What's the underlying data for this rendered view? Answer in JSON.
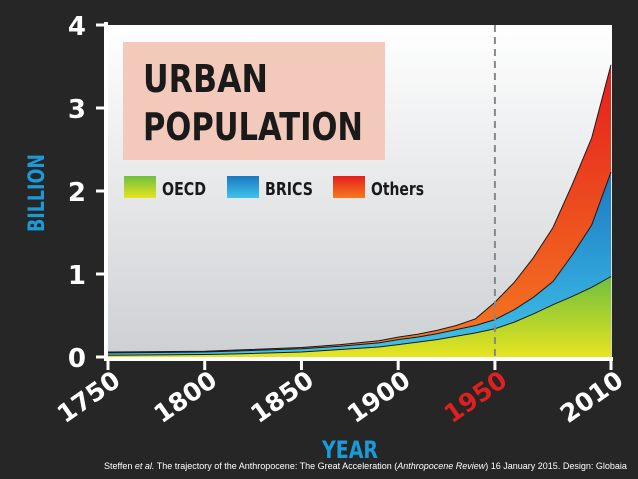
{
  "chart_data": {
    "type": "area",
    "stacked": true,
    "title": "URBAN POPULATION",
    "title_lines": [
      "URBAN",
      "POPULATION"
    ],
    "xlabel": "YEAR",
    "ylabel": "BILLION",
    "xlim": [
      1750,
      2010
    ],
    "ylim": [
      0,
      4
    ],
    "x_ticks": [
      1750,
      1800,
      1850,
      1900,
      1950,
      2010
    ],
    "y_ticks": [
      0,
      1,
      2,
      3,
      4
    ],
    "highlight_year": 1950,
    "legend_position": "top-left",
    "grid": false,
    "x": [
      1750,
      1800,
      1820,
      1850,
      1870,
      1890,
      1900,
      1910,
      1920,
      1930,
      1940,
      1950,
      1960,
      1970,
      1980,
      1990,
      2000,
      2010
    ],
    "series": [
      {
        "name": "OECD",
        "color_top": "#7dc242",
        "color_bottom": "#e8e61c",
        "values": [
          0.02,
          0.03,
          0.04,
          0.06,
          0.09,
          0.12,
          0.15,
          0.18,
          0.21,
          0.25,
          0.29,
          0.34,
          0.42,
          0.52,
          0.63,
          0.73,
          0.84,
          0.97
        ]
      },
      {
        "name": "BRICS",
        "color_top": "#1f7fc6",
        "color_bottom": "#3bbfe6",
        "values": [
          0.03,
          0.03,
          0.035,
          0.04,
          0.04,
          0.05,
          0.06,
          0.06,
          0.07,
          0.08,
          0.09,
          0.11,
          0.15,
          0.2,
          0.28,
          0.5,
          0.75,
          1.26
        ]
      },
      {
        "name": "Others",
        "color_top": "#e82a20",
        "color_bottom": "#f58220",
        "values": [
          0.01,
          0.01,
          0.012,
          0.015,
          0.02,
          0.025,
          0.03,
          0.035,
          0.04,
          0.05,
          0.08,
          0.21,
          0.33,
          0.48,
          0.65,
          0.85,
          1.05,
          1.29
        ]
      }
    ]
  },
  "caption": {
    "authors": "Steffen",
    "et_al": "et al.",
    "pre": "The trajectory of the Anthropocene: The Great Acceleration (",
    "journal": "Anthropocene Review",
    "post": ") 16 January 2015. Design: Globaia"
  },
  "colors": {
    "background": "#262626",
    "plot_top": "#ffffff",
    "plot_bottom": "#cfd2d4",
    "title_box": "#f2c9bb",
    "axis_label": "#1b9ad8",
    "highlight": "#e02020",
    "tick_text": "#ffffff"
  }
}
